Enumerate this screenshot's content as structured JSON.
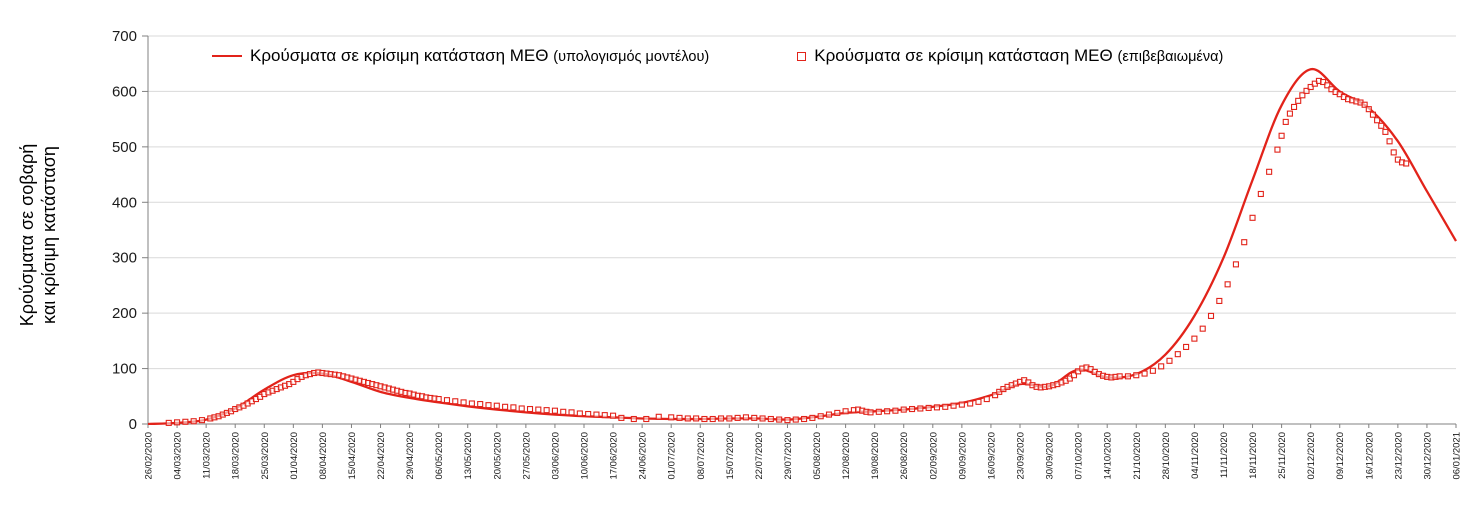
{
  "chart": {
    "ylabel_line1": "Κρούσματα σε σοβαρή",
    "ylabel_line2": "και κρίσιμη κατάσταση",
    "legend": [
      {
        "label_main": "Κρούσματα σε κρίσιμη κατάσταση ΜΕΘ",
        "label_paren": "(υπολογισμός μοντέλου)"
      },
      {
        "label_main": "Κρούσματα σε κρίσιμη κατάσταση ΜΕΘ",
        "label_paren": "(επιβεβαιωμένα)"
      }
    ]
  },
  "chart_data": {
    "type": "line",
    "title": "",
    "xlabel": "",
    "ylabel": "Κρούσματα σε σοβαρή και κρίσιμη κατάσταση",
    "ylim": [
      0,
      700
    ],
    "yticks": [
      0,
      100,
      200,
      300,
      400,
      500,
      600,
      700
    ],
    "grid": true,
    "legend_position": "top",
    "x_interval_days": 7,
    "x": [
      "26/02/2020",
      "04/03/2020",
      "11/03/2020",
      "18/03/2020",
      "25/03/2020",
      "01/04/2020",
      "08/04/2020",
      "15/04/2020",
      "22/04/2020",
      "29/04/2020",
      "06/05/2020",
      "13/05/2020",
      "20/05/2020",
      "27/05/2020",
      "03/06/2020",
      "10/06/2020",
      "17/06/2020",
      "24/06/2020",
      "01/07/2020",
      "08/07/2020",
      "15/07/2020",
      "22/07/2020",
      "29/07/2020",
      "05/08/2020",
      "12/08/2020",
      "19/08/2020",
      "26/08/2020",
      "02/09/2020",
      "09/09/2020",
      "16/09/2020",
      "23/09/2020",
      "30/09/2020",
      "07/10/2020",
      "14/10/2020",
      "21/10/2020",
      "28/10/2020",
      "04/11/2020",
      "11/11/2020",
      "18/11/2020",
      "25/11/2020",
      "02/12/2020",
      "09/12/2020",
      "16/12/2020",
      "23/12/2020",
      "30/12/2020",
      "06/01/2021"
    ],
    "colors": {
      "line": "#e2231a",
      "marker": "#e2231a",
      "grid": "#d9d9d9",
      "axis": "#808080",
      "text": "#1a1a1a"
    },
    "series": [
      {
        "name": "Κρούσματα σε κρίσιμη κατάσταση ΜΕΘ (υπολογισμός μοντέλου)",
        "style": "line",
        "values": [
          0,
          2,
          8,
          28,
          62,
          88,
          91,
          76,
          58,
          47,
          39,
          32,
          26,
          21,
          17,
          14,
          12,
          10,
          9,
          9,
          10,
          10,
          8,
          13,
          20,
          23,
          26,
          31,
          38,
          52,
          72,
          68,
          98,
          84,
          90,
          125,
          195,
          300,
          440,
          575,
          640,
          600,
          570,
          510,
          420,
          330
        ]
      },
      {
        "name": "Κρούσματα σε κρίσιμη κατάσταση ΜΕΘ (επιβεβαιωμένα)",
        "style": "scatter-open-square",
        "points": [
          [
            5,
            2
          ],
          [
            7,
            3
          ],
          [
            9,
            4
          ],
          [
            11,
            5
          ],
          [
            13,
            7
          ],
          [
            15,
            10
          ],
          [
            16,
            12
          ],
          [
            17,
            14
          ],
          [
            18,
            17
          ],
          [
            19,
            20
          ],
          [
            20,
            23
          ],
          [
            21,
            27
          ],
          [
            22,
            30
          ],
          [
            23,
            33
          ],
          [
            24,
            37
          ],
          [
            25,
            41
          ],
          [
            26,
            45
          ],
          [
            27,
            49
          ],
          [
            28,
            54
          ],
          [
            29,
            57
          ],
          [
            30,
            60
          ],
          [
            31,
            63
          ],
          [
            32,
            66
          ],
          [
            33,
            69
          ],
          [
            34,
            72
          ],
          [
            35,
            76
          ],
          [
            36,
            81
          ],
          [
            37,
            85
          ],
          [
            38,
            88
          ],
          [
            39,
            90
          ],
          [
            40,
            92
          ],
          [
            41,
            93
          ],
          [
            42,
            92
          ],
          [
            43,
            91
          ],
          [
            44,
            90
          ],
          [
            45,
            89
          ],
          [
            46,
            88
          ],
          [
            47,
            86
          ],
          [
            48,
            84
          ],
          [
            49,
            82
          ],
          [
            50,
            80
          ],
          [
            51,
            78
          ],
          [
            52,
            76
          ],
          [
            53,
            74
          ],
          [
            54,
            72
          ],
          [
            55,
            70
          ],
          [
            56,
            68
          ],
          [
            57,
            66
          ],
          [
            58,
            64
          ],
          [
            59,
            62
          ],
          [
            60,
            60
          ],
          [
            61,
            58
          ],
          [
            62,
            56
          ],
          [
            63,
            55
          ],
          [
            64,
            53
          ],
          [
            65,
            51
          ],
          [
            66,
            50
          ],
          [
            67,
            48
          ],
          [
            68,
            47
          ],
          [
            69,
            46
          ],
          [
            70,
            45
          ],
          [
            72,
            43
          ],
          [
            74,
            41
          ],
          [
            76,
            39
          ],
          [
            78,
            37
          ],
          [
            80,
            36
          ],
          [
            82,
            34
          ],
          [
            84,
            33
          ],
          [
            86,
            31
          ],
          [
            88,
            30
          ],
          [
            90,
            28
          ],
          [
            92,
            27
          ],
          [
            94,
            26
          ],
          [
            96,
            25
          ],
          [
            98,
            24
          ],
          [
            100,
            22
          ],
          [
            102,
            21
          ],
          [
            104,
            19
          ],
          [
            106,
            18
          ],
          [
            108,
            17
          ],
          [
            110,
            16
          ],
          [
            112,
            15
          ],
          [
            114,
            11
          ],
          [
            117,
            9
          ],
          [
            120,
            9
          ],
          [
            123,
            13
          ],
          [
            126,
            12
          ],
          [
            128,
            11
          ],
          [
            130,
            10
          ],
          [
            132,
            10
          ],
          [
            134,
            9
          ],
          [
            136,
            9
          ],
          [
            138,
            10
          ],
          [
            140,
            10
          ],
          [
            142,
            11
          ],
          [
            144,
            12
          ],
          [
            146,
            11
          ],
          [
            148,
            10
          ],
          [
            150,
            9
          ],
          [
            152,
            8
          ],
          [
            154,
            7
          ],
          [
            156,
            8
          ],
          [
            158,
            9
          ],
          [
            160,
            11
          ],
          [
            162,
            14
          ],
          [
            164,
            17
          ],
          [
            166,
            20
          ],
          [
            168,
            23
          ],
          [
            170,
            25
          ],
          [
            171,
            26
          ],
          [
            172,
            24
          ],
          [
            173,
            22
          ],
          [
            174,
            21
          ],
          [
            176,
            22
          ],
          [
            178,
            23
          ],
          [
            180,
            24
          ],
          [
            182,
            26
          ],
          [
            184,
            27
          ],
          [
            186,
            28
          ],
          [
            188,
            29
          ],
          [
            190,
            30
          ],
          [
            192,
            31
          ],
          [
            194,
            33
          ],
          [
            196,
            35
          ],
          [
            198,
            37
          ],
          [
            200,
            40
          ],
          [
            202,
            45
          ],
          [
            204,
            52
          ],
          [
            205,
            58
          ],
          [
            206,
            63
          ],
          [
            207,
            67
          ],
          [
            208,
            70
          ],
          [
            209,
            73
          ],
          [
            210,
            76
          ],
          [
            211,
            79
          ],
          [
            212,
            75
          ],
          [
            213,
            70
          ],
          [
            214,
            67
          ],
          [
            215,
            66
          ],
          [
            216,
            67
          ],
          [
            217,
            68
          ],
          [
            218,
            70
          ],
          [
            219,
            72
          ],
          [
            220,
            75
          ],
          [
            221,
            78
          ],
          [
            222,
            82
          ],
          [
            223,
            88
          ],
          [
            224,
            95
          ],
          [
            225,
            100
          ],
          [
            226,
            102
          ],
          [
            227,
            99
          ],
          [
            228,
            94
          ],
          [
            229,
            90
          ],
          [
            230,
            87
          ],
          [
            231,
            85
          ],
          [
            232,
            84
          ],
          [
            233,
            85
          ],
          [
            234,
            86
          ],
          [
            236,
            86
          ],
          [
            238,
            88
          ],
          [
            240,
            91
          ],
          [
            242,
            96
          ],
          [
            244,
            104
          ],
          [
            246,
            114
          ],
          [
            248,
            126
          ],
          [
            250,
            139
          ],
          [
            252,
            154
          ],
          [
            254,
            172
          ],
          [
            256,
            195
          ],
          [
            258,
            222
          ],
          [
            260,
            252
          ],
          [
            262,
            288
          ],
          [
            264,
            328
          ],
          [
            266,
            372
          ],
          [
            268,
            415
          ],
          [
            270,
            455
          ],
          [
            272,
            495
          ],
          [
            273,
            520
          ],
          [
            274,
            545
          ],
          [
            275,
            560
          ],
          [
            276,
            572
          ],
          [
            277,
            583
          ],
          [
            278,
            593
          ],
          [
            279,
            601
          ],
          [
            280,
            608
          ],
          [
            281,
            614
          ],
          [
            282,
            619
          ],
          [
            283,
            617
          ],
          [
            284,
            611
          ],
          [
            285,
            604
          ],
          [
            286,
            599
          ],
          [
            287,
            595
          ],
          [
            288,
            590
          ],
          [
            289,
            586
          ],
          [
            290,
            584
          ],
          [
            291,
            582
          ],
          [
            292,
            580
          ],
          [
            293,
            576
          ],
          [
            294,
            568
          ],
          [
            295,
            558
          ],
          [
            296,
            548
          ],
          [
            297,
            538
          ],
          [
            298,
            527
          ],
          [
            299,
            510
          ],
          [
            300,
            490
          ],
          [
            301,
            477
          ],
          [
            302,
            472
          ],
          [
            303,
            470
          ]
        ]
      }
    ]
  }
}
